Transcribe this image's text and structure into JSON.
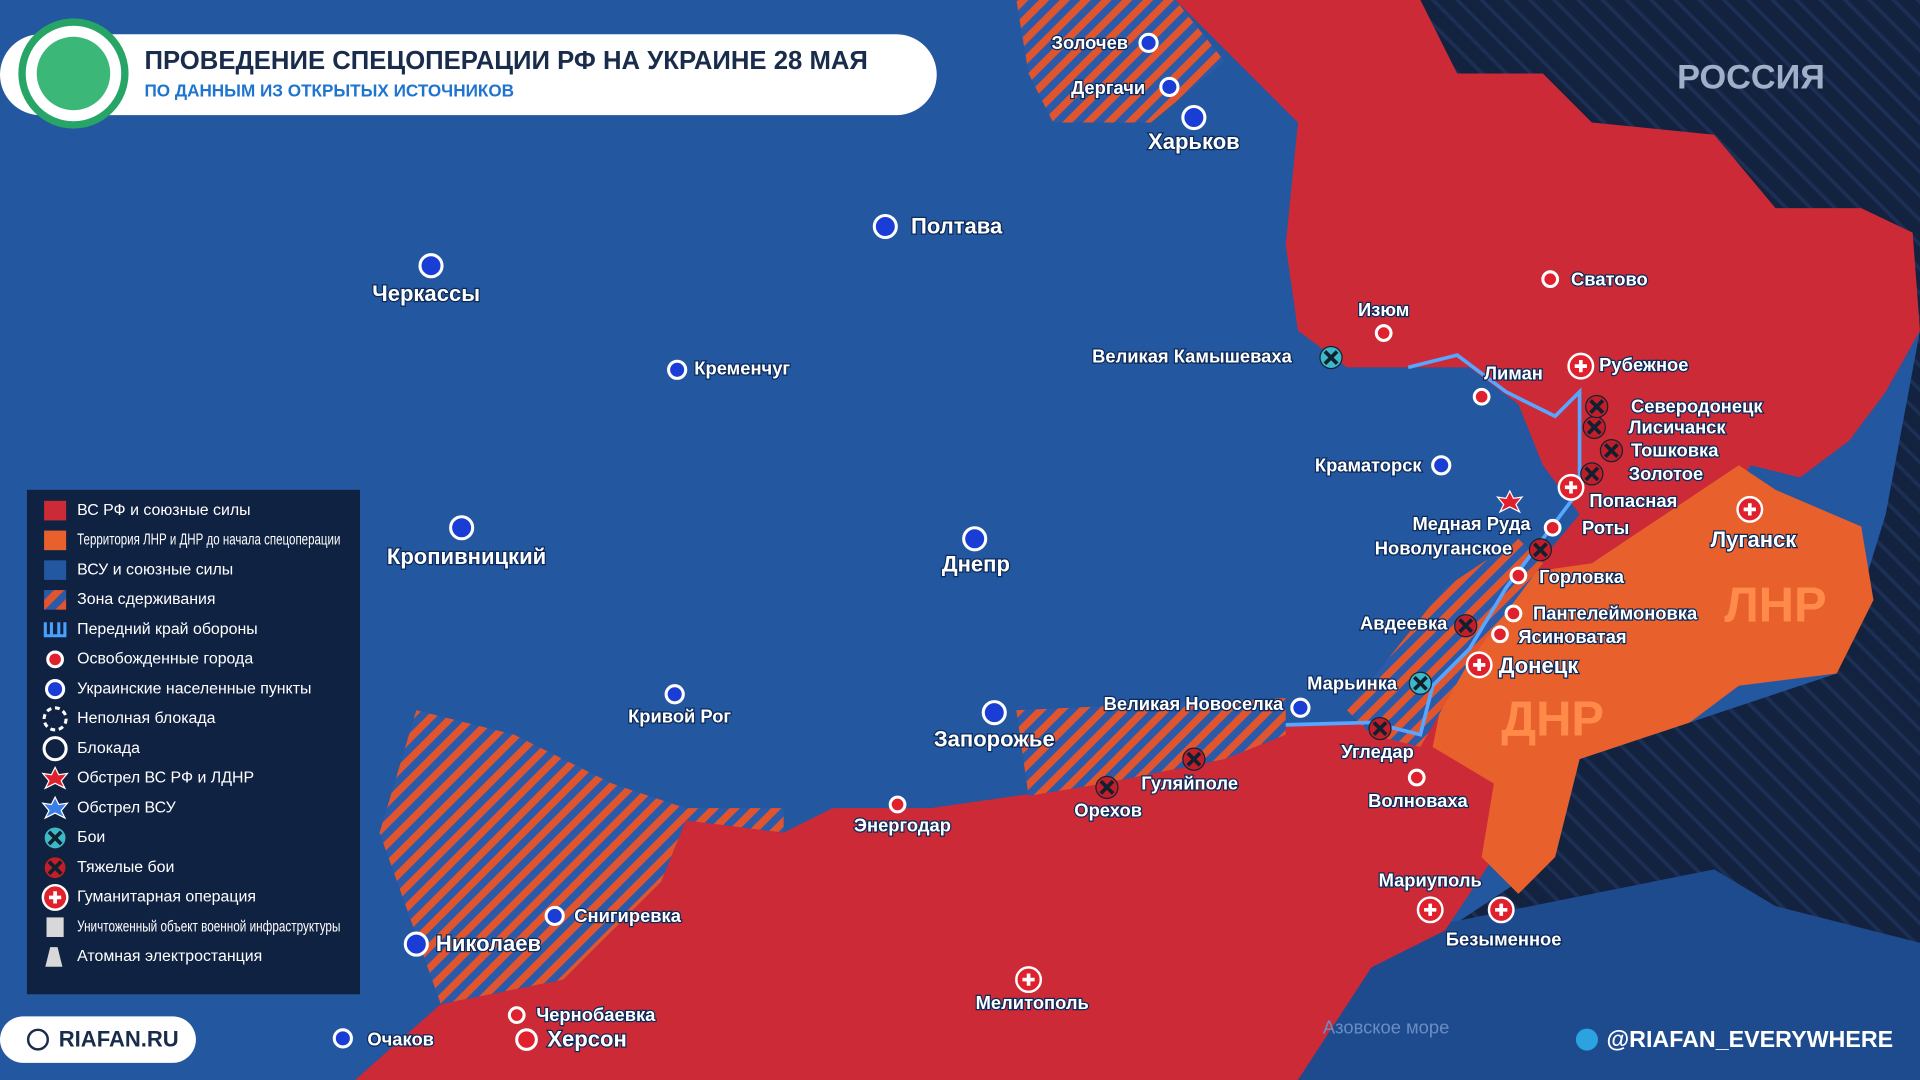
{
  "header": {
    "title": "ПРОВЕДЕНИЕ СПЕЦОПЕРАЦИИ РФ НА УКРАИНЕ 28 МАЯ",
    "subtitle": "ПО ДАННЫМ ИЗ ОТКРЫТЫХ ИСТОЧНИКОВ"
  },
  "regions": {
    "russia": "РОССИЯ",
    "lnr": "ЛНР",
    "dnr": "ДНР",
    "sea": "Азовское море"
  },
  "cities": [
    {
      "label": "Золочев"
    },
    {
      "label": "Дергачи"
    },
    {
      "label": "Харьков"
    },
    {
      "label": "Полтава"
    },
    {
      "label": "Черкассы"
    },
    {
      "label": "Кременчуг"
    },
    {
      "label": "Кропивницкий"
    },
    {
      "label": "Днепр"
    },
    {
      "label": "Кривой Рог"
    },
    {
      "label": "Запорожье"
    },
    {
      "label": "Энергодар"
    },
    {
      "label": "Орехов"
    },
    {
      "label": "Гуляйполе"
    },
    {
      "label": "Николаев"
    },
    {
      "label": "Снигиревка"
    },
    {
      "label": "Очаков"
    },
    {
      "label": "Чернобаевка"
    },
    {
      "label": "Херсон"
    },
    {
      "label": "Мелитополь"
    },
    {
      "label": "Мариуполь"
    },
    {
      "label": "Безыменное"
    },
    {
      "label": "Волноваха"
    },
    {
      "label": "Угледар"
    },
    {
      "label": "Великая Новоселка"
    },
    {
      "label": "Марьинка"
    },
    {
      "label": "Авдеевка"
    },
    {
      "label": "Ясиноватая"
    },
    {
      "label": "Донецк"
    },
    {
      "label": "Пантелеймоновка"
    },
    {
      "label": "Горловка"
    },
    {
      "label": "Новолуганское"
    },
    {
      "label": "Медная Руда"
    },
    {
      "label": "Роты"
    },
    {
      "label": "Попасная"
    },
    {
      "label": "Золотое"
    },
    {
      "label": "Тошковка"
    },
    {
      "label": "Лисичанск"
    },
    {
      "label": "Северодонецк"
    },
    {
      "label": "Рубежное"
    },
    {
      "label": "Лиман"
    },
    {
      "label": "Изюм"
    },
    {
      "label": "Великая Камышеваха"
    },
    {
      "label": "Краматорск"
    },
    {
      "label": "Сватово"
    },
    {
      "label": "Луганск"
    }
  ],
  "legend": {
    "items": [
      {
        "label": "ВС РФ и союзные силы"
      },
      {
        "label": "Территория ЛНР и ДНР до начала спецоперации"
      },
      {
        "label": "ВСУ и союзные силы"
      },
      {
        "label": "Зона сдерживания"
      },
      {
        "label": "Передний край обороны"
      },
      {
        "label": "Освобожденные города"
      },
      {
        "label": "Украинские населенные пункты"
      },
      {
        "label": "Неполная блокада"
      },
      {
        "label": "Блокада"
      },
      {
        "label": "Обстрел ВС РФ и ЛДНР"
      },
      {
        "label": "Обстрел ВСУ"
      },
      {
        "label": "Бои"
      },
      {
        "label": "Тяжелые бои"
      },
      {
        "label": "Гуманитарная операция"
      },
      {
        "label": "Уничтоженный объект военной инфраструктуры"
      },
      {
        "label": "Атомная электростанция"
      }
    ]
  },
  "footer": {
    "site": "RIAFAN.RU",
    "telegram": "@RIAFAN_EVERYWHERE"
  }
}
